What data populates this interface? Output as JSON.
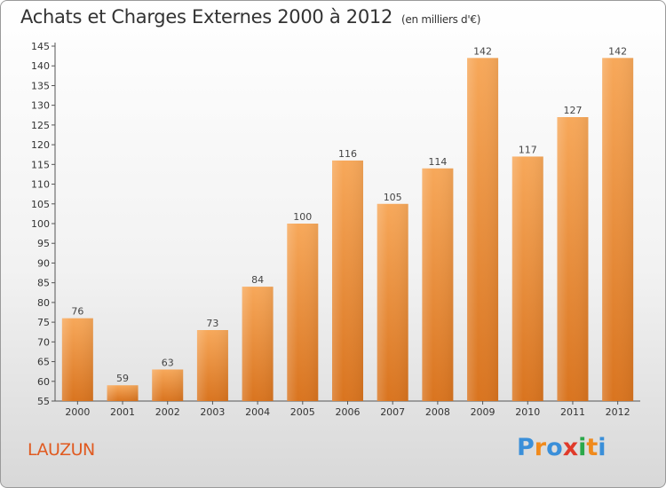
{
  "title": "Achats et Charges Externes 2000 à 2012",
  "title_unit": "(en milliers d'€)",
  "location": "LAUZUN",
  "brand": {
    "letters": [
      "P",
      "r",
      "o",
      "x",
      "i",
      "t",
      "i"
    ],
    "colors": [
      "#3a8fd9",
      "#f08a1c",
      "#3a8fd9",
      "#e03a2a",
      "#2aa84a",
      "#f08a1c",
      "#3a8fd9"
    ]
  },
  "colors": {
    "bar_top": "#f7a85a",
    "bar_bottom": "#d9741f",
    "location": "#e05a20"
  },
  "chart_data": {
    "type": "bar",
    "categories": [
      "2000",
      "2001",
      "2002",
      "2003",
      "2004",
      "2005",
      "2006",
      "2007",
      "2008",
      "2009",
      "2010",
      "2011",
      "2012"
    ],
    "values": [
      76,
      59,
      63,
      73,
      84,
      100,
      116,
      105,
      114,
      142,
      117,
      127,
      142
    ],
    "title": "Achats et Charges Externes 2000 à 2012",
    "xlabel": "",
    "ylabel": "",
    "ylim": [
      55,
      145
    ],
    "yticks": [
      55,
      60,
      65,
      70,
      75,
      80,
      85,
      90,
      95,
      100,
      105,
      110,
      115,
      120,
      125,
      130,
      135,
      140,
      145
    ],
    "grid": false,
    "data_labels": true
  }
}
